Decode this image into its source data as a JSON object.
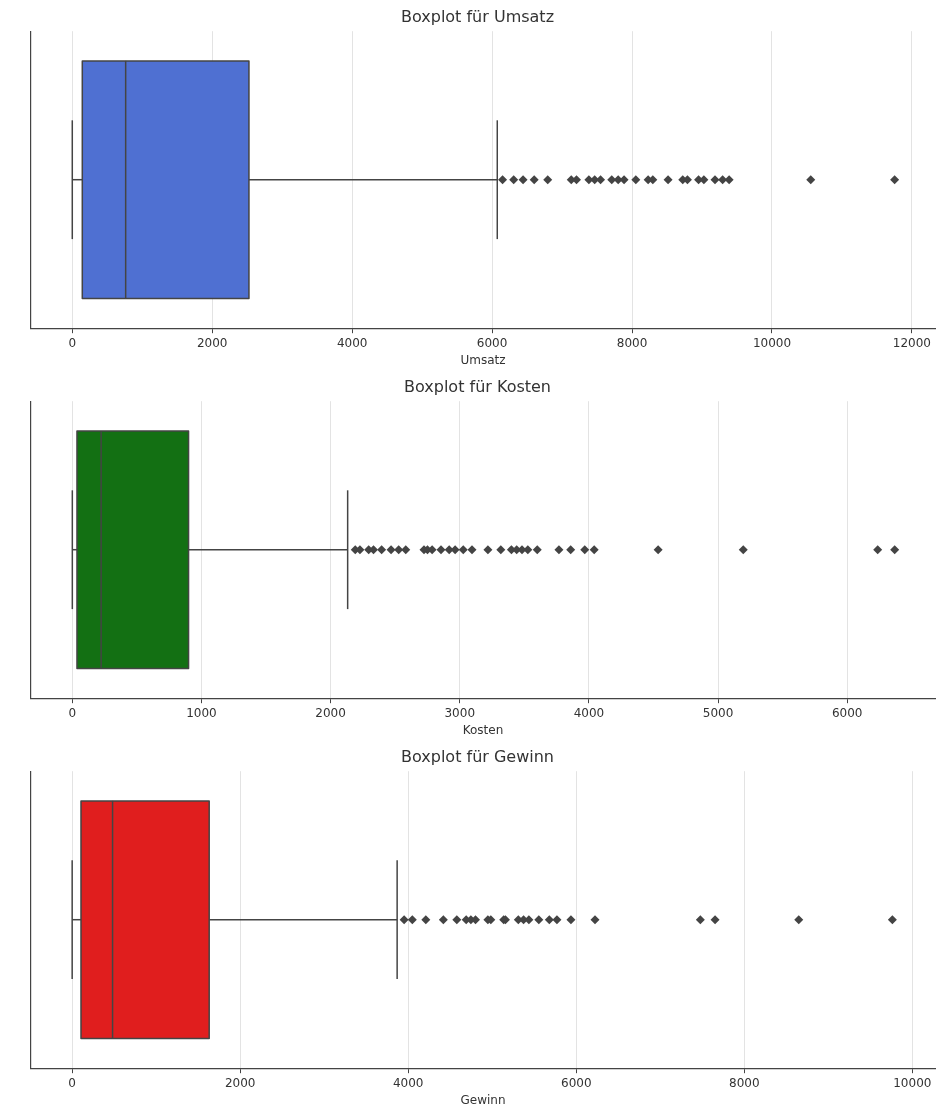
{
  "chart_data": [
    {
      "type": "box",
      "title": "Boxplot für Umsatz",
      "xlabel": "Umsatz",
      "categories": [
        null
      ],
      "orientation": "horizontal",
      "grid": "x",
      "marker": "diamond",
      "xlim": [
        -590,
        12330
      ],
      "xticks": [
        0,
        2000,
        4000,
        6000,
        8000,
        10000,
        12000
      ],
      "series": [
        {
          "color": "#4f70d2",
          "boxes": [
            {
              "low": 0,
              "q1": 143,
              "median": 763,
              "q3": 2525,
              "high": 6074,
              "outliers": [
                6150,
                6309,
                6443,
                6602,
                6795,
                7131,
                7206,
                7383,
                7466,
                7550,
                7710,
                7802,
                7886,
                8054,
                8230,
                8297,
                8515,
                8725,
                8792,
                8951,
                9027,
                9186,
                9295,
                9388,
                10554,
                11753
              ]
            }
          ]
        }
      ]
    },
    {
      "type": "box",
      "title": "Boxplot für Kosten",
      "xlabel": "Kosten",
      "categories": [
        null
      ],
      "orientation": "horizontal",
      "grid": "x",
      "marker": "diamond",
      "xlim": [
        -320,
        6680
      ],
      "xticks": [
        0,
        1000,
        2000,
        3000,
        4000,
        5000,
        6000
      ],
      "series": [
        {
          "color": "#137013",
          "boxes": [
            {
              "low": 0,
              "q1": 36,
              "median": 223,
              "q3": 900,
              "high": 2132,
              "outliers": [
                2191,
                2227,
                2295,
                2332,
                2395,
                2468,
                2527,
                2582,
                2723,
                2750,
                2786,
                2855,
                2918,
                2964,
                3027,
                3095,
                3218,
                3318,
                3400,
                3441,
                3482,
                3527,
                3600,
                3768,
                3859,
                3968,
                4041,
                4536,
                5195,
                6236,
                6368
              ]
            }
          ]
        }
      ]
    },
    {
      "type": "box",
      "title": "Boxplot für Gewinn",
      "xlabel": "Gewinn",
      "categories": [
        null
      ],
      "orientation": "horizontal",
      "grid": "x",
      "marker": "diamond",
      "xlim": [
        -490,
        10270
      ],
      "xticks": [
        0,
        2000,
        4000,
        6000,
        8000,
        10000
      ],
      "series": [
        {
          "color": "#e01e1e",
          "boxes": [
            {
              "low": 0,
              "q1": 105,
              "median": 481,
              "q3": 1631,
              "high": 3868,
              "outliers": [
                3951,
                4049,
                4209,
                4418,
                4578,
                4690,
                4746,
                4801,
                4948,
                4983,
                5136,
                5157,
                5310,
                5373,
                5436,
                5554,
                5679,
                5770,
                5937,
                6223,
                7477,
                7652,
                8648,
                9763
              ]
            }
          ]
        }
      ]
    }
  ]
}
